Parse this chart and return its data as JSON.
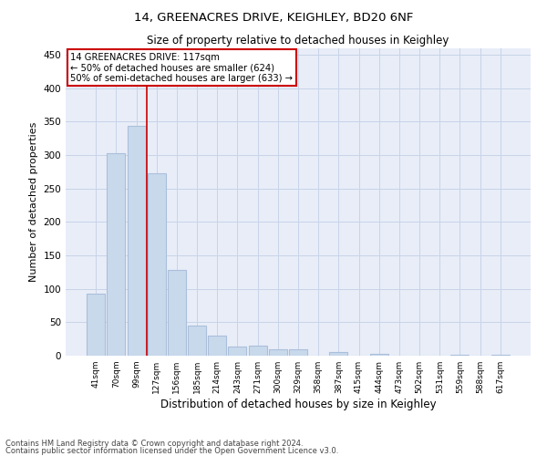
{
  "title_line1": "14, GREENACRES DRIVE, KEIGHLEY, BD20 6NF",
  "title_line2": "Size of property relative to detached houses in Keighley",
  "xlabel": "Distribution of detached houses by size in Keighley",
  "ylabel": "Number of detached properties",
  "categories": [
    "41sqm",
    "70sqm",
    "99sqm",
    "127sqm",
    "156sqm",
    "185sqm",
    "214sqm",
    "243sqm",
    "271sqm",
    "300sqm",
    "329sqm",
    "358sqm",
    "387sqm",
    "415sqm",
    "444sqm",
    "473sqm",
    "502sqm",
    "531sqm",
    "559sqm",
    "588sqm",
    "617sqm"
  ],
  "values": [
    93,
    302,
    343,
    272,
    128,
    45,
    30,
    13,
    15,
    10,
    10,
    0,
    5,
    0,
    3,
    0,
    0,
    0,
    1,
    0,
    1
  ],
  "bar_color": "#c9d9ec",
  "bar_edge_color": "#aabfda",
  "grid_color": "#c8d4e8",
  "background_color": "#e8edf8",
  "red_line_x": 2.5,
  "annotation_text_line1": "14 GREENACRES DRIVE: 117sqm",
  "annotation_text_line2": "← 50% of detached houses are smaller (624)",
  "annotation_text_line3": "50% of semi-detached houses are larger (633) →",
  "annotation_box_color": "#cc0000",
  "ylim": [
    0,
    460
  ],
  "yticks": [
    0,
    50,
    100,
    150,
    200,
    250,
    300,
    350,
    400,
    450
  ],
  "footnote1": "Contains HM Land Registry data © Crown copyright and database right 2024.",
  "footnote2": "Contains public sector information licensed under the Open Government Licence v3.0."
}
